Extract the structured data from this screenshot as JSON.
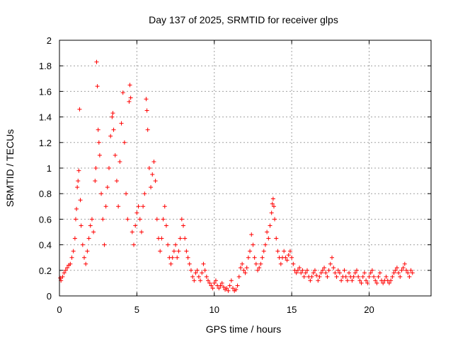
{
  "chart_data": {
    "type": "scatter",
    "title": "Day 137 of 2025, SRMTID for receiver glps",
    "xlabel": "GPS time / hours",
    "ylabel": "SRMTID / TECUs",
    "xlim": [
      0,
      24
    ],
    "ylim": [
      0,
      2
    ],
    "xticks": [
      0,
      5,
      10,
      15,
      20
    ],
    "xtick_labels": [
      "0",
      "5",
      "10",
      "15",
      "20"
    ],
    "yticks": [
      0,
      0.2,
      0.4,
      0.6,
      0.8,
      1,
      1.2,
      1.4,
      1.6,
      1.8,
      2
    ],
    "ytick_labels": [
      "0",
      "0.2",
      "0.4",
      "0.6",
      "0.8",
      "1",
      "1.2",
      "1.4",
      "1.6",
      "1.8",
      "2"
    ],
    "grid": true,
    "marker": "+",
    "color": "#ff0000",
    "series": [
      {
        "name": "SRMTID",
        "points": [
          [
            0.05,
            0.14
          ],
          [
            0.1,
            0.12
          ],
          [
            0.2,
            0.15
          ],
          [
            0.3,
            0.18
          ],
          [
            0.4,
            0.2
          ],
          [
            0.5,
            0.22
          ],
          [
            0.6,
            0.24
          ],
          [
            0.7,
            0.25
          ],
          [
            0.8,
            0.3
          ],
          [
            0.9,
            0.35
          ],
          [
            1.0,
            0.45
          ],
          [
            1.05,
            0.6
          ],
          [
            1.1,
            0.68
          ],
          [
            1.15,
            0.85
          ],
          [
            1.2,
            0.9
          ],
          [
            1.25,
            0.98
          ],
          [
            1.3,
            1.46
          ],
          [
            1.35,
            0.75
          ],
          [
            1.4,
            0.55
          ],
          [
            1.5,
            0.4
          ],
          [
            1.6,
            0.3
          ],
          [
            1.7,
            0.25
          ],
          [
            1.8,
            0.35
          ],
          [
            1.9,
            0.45
          ],
          [
            2.0,
            0.55
          ],
          [
            2.1,
            0.6
          ],
          [
            2.2,
            0.5
          ],
          [
            2.3,
            0.9
          ],
          [
            2.35,
            1.0
          ],
          [
            2.4,
            1.83
          ],
          [
            2.45,
            1.64
          ],
          [
            2.5,
            1.3
          ],
          [
            2.55,
            1.2
          ],
          [
            2.6,
            1.1
          ],
          [
            2.7,
            0.8
          ],
          [
            2.8,
            0.6
          ],
          [
            2.9,
            0.4
          ],
          [
            3.0,
            0.7
          ],
          [
            3.1,
            0.85
          ],
          [
            3.2,
            1.0
          ],
          [
            3.3,
            1.25
          ],
          [
            3.4,
            1.4
          ],
          [
            3.45,
            1.43
          ],
          [
            3.5,
            1.3
          ],
          [
            3.6,
            1.1
          ],
          [
            3.7,
            0.9
          ],
          [
            3.8,
            0.7
          ],
          [
            3.9,
            1.05
          ],
          [
            4.0,
            1.35
          ],
          [
            4.1,
            1.59
          ],
          [
            4.2,
            1.2
          ],
          [
            4.3,
            0.8
          ],
          [
            4.4,
            0.6
          ],
          [
            4.5,
            1.52
          ],
          [
            4.55,
            1.65
          ],
          [
            4.6,
            1.55
          ],
          [
            4.7,
            0.5
          ],
          [
            4.8,
            0.4
          ],
          [
            4.9,
            0.55
          ],
          [
            5.0,
            0.65
          ],
          [
            5.1,
            0.7
          ],
          [
            5.2,
            0.6
          ],
          [
            5.3,
            0.5
          ],
          [
            5.4,
            0.7
          ],
          [
            5.5,
            0.8
          ],
          [
            5.6,
            1.54
          ],
          [
            5.65,
            1.45
          ],
          [
            5.7,
            1.3
          ],
          [
            5.8,
            1.0
          ],
          [
            5.9,
            0.85
          ],
          [
            6.0,
            0.95
          ],
          [
            6.1,
            1.05
          ],
          [
            6.2,
            0.9
          ],
          [
            6.3,
            0.6
          ],
          [
            6.4,
            0.45
          ],
          [
            6.5,
            0.35
          ],
          [
            6.6,
            0.45
          ],
          [
            6.7,
            0.6
          ],
          [
            6.8,
            0.7
          ],
          [
            6.9,
            0.55
          ],
          [
            7.0,
            0.4
          ],
          [
            7.1,
            0.3
          ],
          [
            7.2,
            0.25
          ],
          [
            7.3,
            0.3
          ],
          [
            7.4,
            0.35
          ],
          [
            7.5,
            0.4
          ],
          [
            7.6,
            0.3
          ],
          [
            7.7,
            0.35
          ],
          [
            7.8,
            0.45
          ],
          [
            7.9,
            0.6
          ],
          [
            8.0,
            0.55
          ],
          [
            8.1,
            0.45
          ],
          [
            8.2,
            0.35
          ],
          [
            8.3,
            0.3
          ],
          [
            8.4,
            0.25
          ],
          [
            8.5,
            0.2
          ],
          [
            8.6,
            0.15
          ],
          [
            8.7,
            0.12
          ],
          [
            8.8,
            0.18
          ],
          [
            8.9,
            0.2
          ],
          [
            9.0,
            0.15
          ],
          [
            9.1,
            0.12
          ],
          [
            9.2,
            0.18
          ],
          [
            9.3,
            0.25
          ],
          [
            9.4,
            0.2
          ],
          [
            9.5,
            0.15
          ],
          [
            9.6,
            0.12
          ],
          [
            9.7,
            0.1
          ],
          [
            9.8,
            0.08
          ],
          [
            9.9,
            0.06
          ],
          [
            10.0,
            0.1
          ],
          [
            10.1,
            0.12
          ],
          [
            10.2,
            0.08
          ],
          [
            10.3,
            0.06
          ],
          [
            10.4,
            0.08
          ],
          [
            10.5,
            0.1
          ],
          [
            10.6,
            0.07
          ],
          [
            10.7,
            0.05
          ],
          [
            10.8,
            0.06
          ],
          [
            10.9,
            0.04
          ],
          [
            11.0,
            0.08
          ],
          [
            11.1,
            0.12
          ],
          [
            11.2,
            0.06
          ],
          [
            11.3,
            0.04
          ],
          [
            11.4,
            0.05
          ],
          [
            11.5,
            0.08
          ],
          [
            11.6,
            0.15
          ],
          [
            11.7,
            0.22
          ],
          [
            11.8,
            0.25
          ],
          [
            11.9,
            0.2
          ],
          [
            12.0,
            0.18
          ],
          [
            12.1,
            0.22
          ],
          [
            12.2,
            0.3
          ],
          [
            12.3,
            0.35
          ],
          [
            12.4,
            0.48
          ],
          [
            12.5,
            0.4
          ],
          [
            12.6,
            0.3
          ],
          [
            12.7,
            0.25
          ],
          [
            12.8,
            0.2
          ],
          [
            12.9,
            0.22
          ],
          [
            13.0,
            0.25
          ],
          [
            13.1,
            0.3
          ],
          [
            13.2,
            0.35
          ],
          [
            13.3,
            0.4
          ],
          [
            13.4,
            0.5
          ],
          [
            13.5,
            0.45
          ],
          [
            13.6,
            0.55
          ],
          [
            13.7,
            0.65
          ],
          [
            13.75,
            0.72
          ],
          [
            13.8,
            0.76
          ],
          [
            13.85,
            0.7
          ],
          [
            13.9,
            0.6
          ],
          [
            14.0,
            0.45
          ],
          [
            14.1,
            0.35
          ],
          [
            14.2,
            0.3
          ],
          [
            14.3,
            0.25
          ],
          [
            14.4,
            0.3
          ],
          [
            14.5,
            0.35
          ],
          [
            14.6,
            0.3
          ],
          [
            14.7,
            0.28
          ],
          [
            14.8,
            0.32
          ],
          [
            14.9,
            0.35
          ],
          [
            15.0,
            0.3
          ],
          [
            15.1,
            0.25
          ],
          [
            15.2,
            0.2
          ],
          [
            15.3,
            0.18
          ],
          [
            15.4,
            0.2
          ],
          [
            15.5,
            0.22
          ],
          [
            15.6,
            0.18
          ],
          [
            15.7,
            0.2
          ],
          [
            15.8,
            0.15
          ],
          [
            15.9,
            0.18
          ],
          [
            16.0,
            0.2
          ],
          [
            16.1,
            0.15
          ],
          [
            16.2,
            0.12
          ],
          [
            16.3,
            0.15
          ],
          [
            16.4,
            0.18
          ],
          [
            16.5,
            0.2
          ],
          [
            16.6,
            0.16
          ],
          [
            16.7,
            0.12
          ],
          [
            16.8,
            0.15
          ],
          [
            16.9,
            0.18
          ],
          [
            17.0,
            0.2
          ],
          [
            17.1,
            0.22
          ],
          [
            17.2,
            0.18
          ],
          [
            17.3,
            0.15
          ],
          [
            17.4,
            0.2
          ],
          [
            17.5,
            0.25
          ],
          [
            17.6,
            0.3
          ],
          [
            17.7,
            0.22
          ],
          [
            17.8,
            0.18
          ],
          [
            17.9,
            0.15
          ],
          [
            18.0,
            0.2
          ],
          [
            18.1,
            0.18
          ],
          [
            18.2,
            0.12
          ],
          [
            18.3,
            0.15
          ],
          [
            18.4,
            0.2
          ],
          [
            18.5,
            0.15
          ],
          [
            18.6,
            0.12
          ],
          [
            18.7,
            0.18
          ],
          [
            18.8,
            0.15
          ],
          [
            18.9,
            0.12
          ],
          [
            19.0,
            0.15
          ],
          [
            19.1,
            0.18
          ],
          [
            19.2,
            0.2
          ],
          [
            19.3,
            0.15
          ],
          [
            19.4,
            0.12
          ],
          [
            19.5,
            0.1
          ],
          [
            19.6,
            0.15
          ],
          [
            19.7,
            0.18
          ],
          [
            19.8,
            0.12
          ],
          [
            19.9,
            0.1
          ],
          [
            20.0,
            0.15
          ],
          [
            20.1,
            0.18
          ],
          [
            20.2,
            0.2
          ],
          [
            20.3,
            0.15
          ],
          [
            20.4,
            0.12
          ],
          [
            20.5,
            0.1
          ],
          [
            20.6,
            0.15
          ],
          [
            20.7,
            0.18
          ],
          [
            20.8,
            0.12
          ],
          [
            20.9,
            0.1
          ],
          [
            21.0,
            0.12
          ],
          [
            21.1,
            0.15
          ],
          [
            21.2,
            0.12
          ],
          [
            21.3,
            0.1
          ],
          [
            21.4,
            0.12
          ],
          [
            21.5,
            0.15
          ],
          [
            21.6,
            0.18
          ],
          [
            21.7,
            0.2
          ],
          [
            21.8,
            0.22
          ],
          [
            21.9,
            0.18
          ],
          [
            22.0,
            0.15
          ],
          [
            22.1,
            0.2
          ],
          [
            22.2,
            0.22
          ],
          [
            22.3,
            0.25
          ],
          [
            22.4,
            0.2
          ],
          [
            22.5,
            0.18
          ],
          [
            22.6,
            0.15
          ],
          [
            22.7,
            0.2
          ],
          [
            22.8,
            0.18
          ]
        ]
      }
    ]
  }
}
